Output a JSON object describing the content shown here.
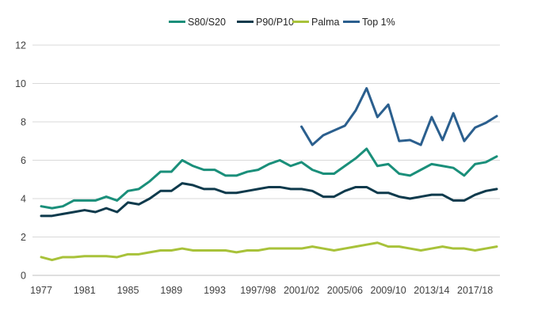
{
  "chart_data": {
    "type": "line",
    "title": "",
    "xlabel": "",
    "ylabel": "",
    "ylim": [
      0,
      12
    ],
    "yticks": [
      0,
      2,
      4,
      6,
      8,
      10,
      12
    ],
    "grid": true,
    "legend_position": "top-center",
    "x": [
      "1977",
      "1978",
      "1979",
      "1980",
      "1981",
      "1982",
      "1983",
      "1984",
      "1985",
      "1986",
      "1987",
      "1988",
      "1989",
      "1990",
      "1991",
      "1992",
      "1993",
      "1994",
      "1995",
      "1996",
      "1997/98",
      "1998/99",
      "1999/00",
      "2000/01",
      "2001/02",
      "2002/03",
      "2003/04",
      "2004/05",
      "2005/06",
      "2006/07",
      "2007/08",
      "2008/09",
      "2009/10",
      "2010/11",
      "2011/12",
      "2012/13",
      "2013/14",
      "2014/15",
      "2015/16",
      "2016/17",
      "2017/18",
      "2018/19",
      "2019/20"
    ],
    "xtick_labels": [
      "1977",
      "1981",
      "1985",
      "1989",
      "1993",
      "1997/98",
      "2001/02",
      "2005/06",
      "2009/10",
      "2013/14",
      "2017/18"
    ],
    "xtick_indices": [
      0,
      4,
      8,
      12,
      16,
      20,
      24,
      28,
      32,
      36,
      40
    ],
    "series": [
      {
        "name": "S80/S20",
        "color": "#1a8f7a",
        "values": [
          3.6,
          3.5,
          3.6,
          3.9,
          3.9,
          3.9,
          4.1,
          3.9,
          4.4,
          4.5,
          4.9,
          5.4,
          5.4,
          6.0,
          5.7,
          5.5,
          5.5,
          5.2,
          5.2,
          5.4,
          5.5,
          5.8,
          6.0,
          5.7,
          5.9,
          5.5,
          5.3,
          5.3,
          5.7,
          6.1,
          6.6,
          5.7,
          5.8,
          5.3,
          5.2,
          5.5,
          5.8,
          5.7,
          5.6,
          5.2,
          5.8,
          5.9,
          6.2
        ]
      },
      {
        "name": "P90/P10",
        "color": "#0e3a4c",
        "values": [
          3.1,
          3.1,
          3.2,
          3.3,
          3.4,
          3.3,
          3.5,
          3.3,
          3.8,
          3.7,
          4.0,
          4.4,
          4.4,
          4.8,
          4.7,
          4.5,
          4.5,
          4.3,
          4.3,
          4.4,
          4.5,
          4.6,
          4.6,
          4.5,
          4.5,
          4.4,
          4.1,
          4.1,
          4.4,
          4.6,
          4.6,
          4.3,
          4.3,
          4.1,
          4.0,
          4.1,
          4.2,
          4.2,
          3.9,
          3.9,
          4.2,
          4.4,
          4.5
        ]
      },
      {
        "name": "Palma",
        "color": "#a8c23a",
        "values": [
          0.95,
          0.8,
          0.95,
          0.95,
          1.0,
          1.0,
          1.0,
          0.95,
          1.1,
          1.1,
          1.2,
          1.3,
          1.3,
          1.4,
          1.3,
          1.3,
          1.3,
          1.3,
          1.2,
          1.3,
          1.3,
          1.4,
          1.4,
          1.4,
          1.4,
          1.5,
          1.4,
          1.3,
          1.4,
          1.5,
          1.6,
          1.7,
          1.5,
          1.5,
          1.4,
          1.3,
          1.4,
          1.5,
          1.4,
          1.4,
          1.3,
          1.4,
          1.5
        ]
      },
      {
        "name": "Top 1%",
        "color": "#2b5f8e",
        "values": [
          null,
          null,
          null,
          null,
          null,
          null,
          null,
          null,
          null,
          null,
          null,
          null,
          null,
          null,
          null,
          null,
          null,
          null,
          null,
          null,
          null,
          null,
          null,
          null,
          7.75,
          6.8,
          7.3,
          7.55,
          7.8,
          8.6,
          9.75,
          8.25,
          8.9,
          7.0,
          7.05,
          6.8,
          8.25,
          7.05,
          8.45,
          7.0,
          7.7,
          7.95,
          8.3
        ]
      }
    ]
  }
}
